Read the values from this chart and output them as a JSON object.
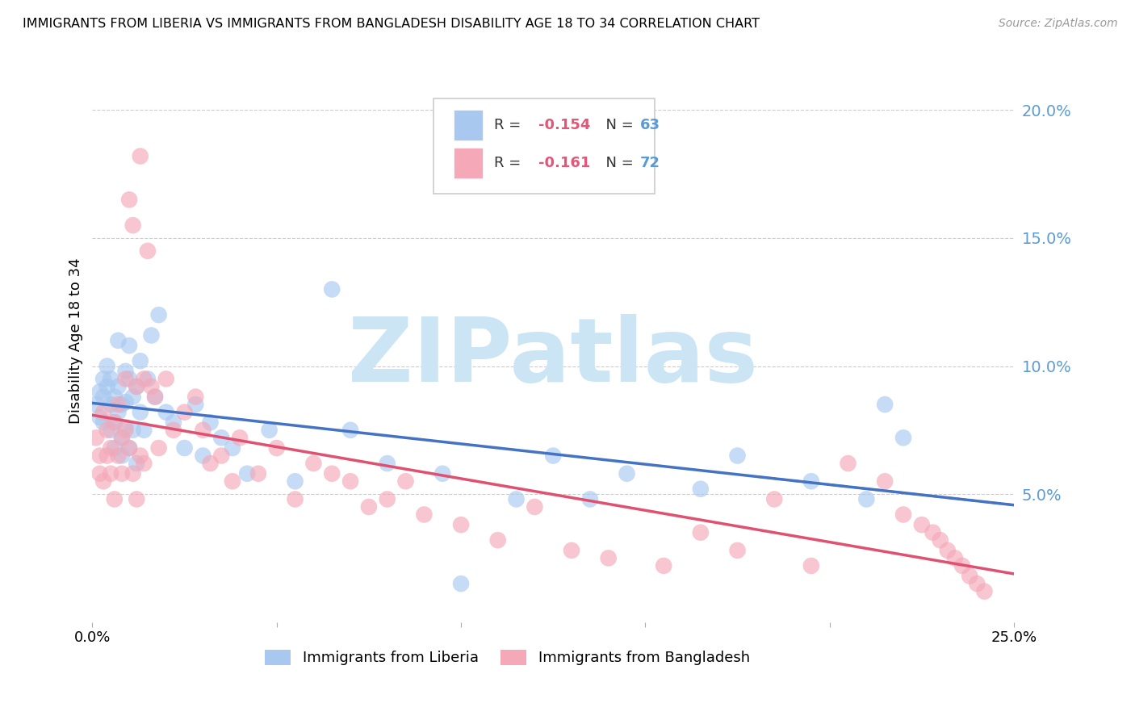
{
  "title": "IMMIGRANTS FROM LIBERIA VS IMMIGRANTS FROM BANGLADESH DISABILITY AGE 18 TO 34 CORRELATION CHART",
  "source": "Source: ZipAtlas.com",
  "ylabel": "Disability Age 18 to 34",
  "xlim": [
    0.0,
    0.25
  ],
  "ylim": [
    0.0,
    0.22
  ],
  "liberia_color": "#a8c8f0",
  "liberia_line_color": "#4472c4",
  "bangladesh_color": "#f4a8b8",
  "bangladesh_line_color": "#e05070",
  "watermark_text": "ZIPatlas",
  "watermark_color": "#cce5f5",
  "liberia_x": [
    0.001,
    0.002,
    0.002,
    0.003,
    0.003,
    0.003,
    0.004,
    0.004,
    0.005,
    0.005,
    0.005,
    0.006,
    0.006,
    0.006,
    0.007,
    0.007,
    0.007,
    0.008,
    0.008,
    0.008,
    0.009,
    0.009,
    0.009,
    0.01,
    0.01,
    0.01,
    0.011,
    0.011,
    0.012,
    0.012,
    0.013,
    0.013,
    0.014,
    0.015,
    0.016,
    0.017,
    0.018,
    0.02,
    0.022,
    0.025,
    0.028,
    0.03,
    0.032,
    0.035,
    0.038,
    0.042,
    0.048,
    0.055,
    0.065,
    0.07,
    0.08,
    0.095,
    0.1,
    0.115,
    0.125,
    0.135,
    0.145,
    0.165,
    0.175,
    0.195,
    0.21,
    0.215,
    0.22
  ],
  "liberia_y": [
    0.085,
    0.09,
    0.08,
    0.095,
    0.088,
    0.078,
    0.092,
    0.1,
    0.085,
    0.075,
    0.095,
    0.088,
    0.078,
    0.068,
    0.092,
    0.082,
    0.11,
    0.072,
    0.085,
    0.065,
    0.086,
    0.076,
    0.098,
    0.068,
    0.095,
    0.108,
    0.075,
    0.088,
    0.062,
    0.092,
    0.082,
    0.102,
    0.075,
    0.095,
    0.112,
    0.088,
    0.12,
    0.082,
    0.078,
    0.068,
    0.085,
    0.065,
    0.078,
    0.072,
    0.068,
    0.058,
    0.075,
    0.055,
    0.13,
    0.075,
    0.062,
    0.058,
    0.015,
    0.048,
    0.065,
    0.048,
    0.058,
    0.052,
    0.065,
    0.055,
    0.048,
    0.085,
    0.072
  ],
  "bangladesh_x": [
    0.001,
    0.002,
    0.002,
    0.003,
    0.003,
    0.004,
    0.004,
    0.005,
    0.005,
    0.006,
    0.006,
    0.007,
    0.007,
    0.008,
    0.008,
    0.009,
    0.009,
    0.01,
    0.01,
    0.011,
    0.011,
    0.012,
    0.012,
    0.013,
    0.013,
    0.014,
    0.014,
    0.015,
    0.016,
    0.017,
    0.018,
    0.02,
    0.022,
    0.025,
    0.028,
    0.03,
    0.032,
    0.035,
    0.038,
    0.04,
    0.045,
    0.05,
    0.055,
    0.06,
    0.065,
    0.07,
    0.075,
    0.08,
    0.085,
    0.09,
    0.1,
    0.11,
    0.12,
    0.13,
    0.14,
    0.155,
    0.165,
    0.175,
    0.185,
    0.195,
    0.205,
    0.215,
    0.22,
    0.225,
    0.228,
    0.23,
    0.232,
    0.234,
    0.236,
    0.238,
    0.24,
    0.242
  ],
  "bangladesh_y": [
    0.072,
    0.065,
    0.058,
    0.082,
    0.055,
    0.075,
    0.065,
    0.068,
    0.058,
    0.078,
    0.048,
    0.085,
    0.065,
    0.072,
    0.058,
    0.095,
    0.075,
    0.165,
    0.068,
    0.155,
    0.058,
    0.092,
    0.048,
    0.182,
    0.065,
    0.095,
    0.062,
    0.145,
    0.092,
    0.088,
    0.068,
    0.095,
    0.075,
    0.082,
    0.088,
    0.075,
    0.062,
    0.065,
    0.055,
    0.072,
    0.058,
    0.068,
    0.048,
    0.062,
    0.058,
    0.055,
    0.045,
    0.048,
    0.055,
    0.042,
    0.038,
    0.032,
    0.045,
    0.028,
    0.025,
    0.022,
    0.035,
    0.028,
    0.048,
    0.022,
    0.062,
    0.055,
    0.042,
    0.038,
    0.035,
    0.032,
    0.028,
    0.025,
    0.022,
    0.018,
    0.015,
    0.012
  ]
}
